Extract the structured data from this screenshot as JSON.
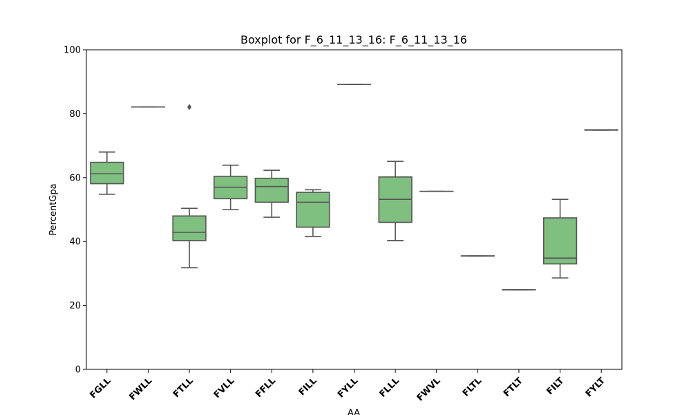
{
  "chart_data": {
    "type": "box",
    "title": "Boxplot for F_6_11_13_16: F_6_11_13_16",
    "xlabel": "AA",
    "ylabel": "PercentGpa",
    "ylim": [
      0,
      100
    ],
    "yticks": [
      0,
      20,
      40,
      60,
      80,
      100
    ],
    "box_color": "#7fbf7f",
    "line_color": "#555555",
    "grid": false,
    "categories": [
      "FGLL",
      "FWLL",
      "FTLL",
      "FVLL",
      "FFLL",
      "FILL",
      "FYLL",
      "FLLL",
      "FWVL",
      "FLTL",
      "FTLT",
      "FILT",
      "FYLT"
    ],
    "boxes": [
      {
        "whislo": 54.8,
        "q1": 58.1,
        "med": 61.2,
        "q3": 64.8,
        "whishi": 68.0,
        "fliers": []
      },
      {
        "whislo": 82.1,
        "q1": 82.1,
        "med": 82.1,
        "q3": 82.1,
        "whishi": 82.1,
        "fliers": []
      },
      {
        "whislo": 31.8,
        "q1": 40.3,
        "med": 42.9,
        "q3": 48.0,
        "whishi": 50.4,
        "fliers": [
          82.1
        ]
      },
      {
        "whislo": 50.0,
        "q1": 53.4,
        "med": 57.0,
        "q3": 60.4,
        "whishi": 63.9,
        "fliers": []
      },
      {
        "whislo": 47.6,
        "q1": 52.3,
        "med": 57.2,
        "q3": 59.8,
        "whishi": 62.3,
        "fliers": []
      },
      {
        "whislo": 41.6,
        "q1": 44.5,
        "med": 52.3,
        "q3": 55.4,
        "whishi": 56.2,
        "fliers": []
      },
      {
        "whislo": 89.2,
        "q1": 89.2,
        "med": 89.2,
        "q3": 89.2,
        "whishi": 89.2,
        "fliers": []
      },
      {
        "whislo": 40.3,
        "q1": 46.0,
        "med": 53.2,
        "q3": 60.2,
        "whishi": 65.1,
        "fliers": []
      },
      {
        "whislo": 55.7,
        "q1": 55.7,
        "med": 55.7,
        "q3": 55.7,
        "whishi": 55.7,
        "fliers": []
      },
      {
        "whislo": 35.5,
        "q1": 35.5,
        "med": 35.5,
        "q3": 35.5,
        "whishi": 35.5,
        "fliers": []
      },
      {
        "whislo": 24.9,
        "q1": 24.9,
        "med": 24.9,
        "q3": 24.9,
        "whishi": 24.9,
        "fliers": []
      },
      {
        "whislo": 28.6,
        "q1": 33.0,
        "med": 34.8,
        "q3": 47.4,
        "whishi": 53.2,
        "fliers": []
      },
      {
        "whislo": 74.9,
        "q1": 74.9,
        "med": 74.9,
        "q3": 74.9,
        "whishi": 74.9,
        "fliers": []
      }
    ]
  }
}
